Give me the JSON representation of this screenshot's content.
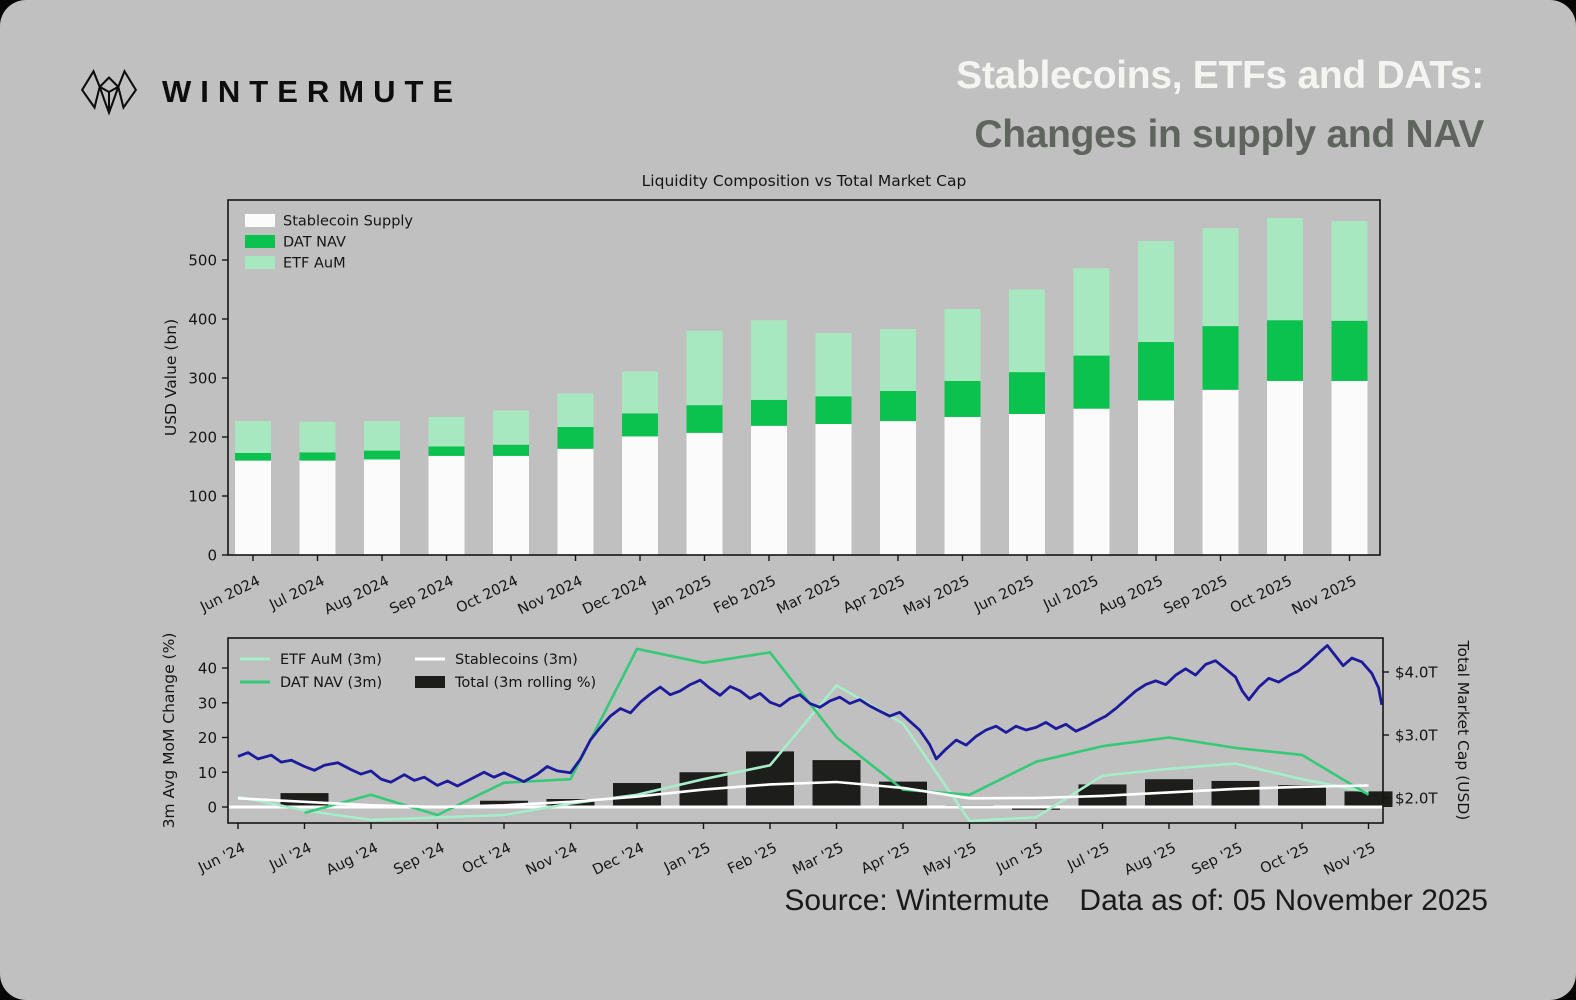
{
  "page": {
    "background": "#bfc0bf",
    "outer_background": "#060606"
  },
  "header": {
    "brand": "WINTERMUTE",
    "title_line1": "Stablecoins, ETFs and DATs:",
    "title_line2": "Changes in supply and NAV",
    "title_line1_color": "#f4f5f2",
    "title_line2_color": "#60645f"
  },
  "footer": {
    "source": "Source: Wintermute",
    "data_as_of": "Data as of: 05 November 2025"
  },
  "chart_data": [
    {
      "type": "bar",
      "title": "Liquidity Composition vs Total Market Cap",
      "ylabel": "USD Value (bn)",
      "yticks": [
        0,
        100,
        200,
        300,
        400,
        500
      ],
      "ylim": [
        0,
        601
      ],
      "grid": false,
      "legend_position": "upper left",
      "categories": [
        "Jun 2024",
        "Jul 2024",
        "Aug 2024",
        "Sep 2024",
        "Oct 2024",
        "Nov 2024",
        "Dec 2024",
        "Jan 2025",
        "Feb 2025",
        "Mar 2025",
        "Apr 2025",
        "May 2025",
        "Jun 2025",
        "Jul 2025",
        "Aug 2025",
        "Sep 2025",
        "Oct 2025",
        "Nov 2025"
      ],
      "series": [
        {
          "name": "Stablecoin Supply",
          "color": "#fafbfa",
          "values": [
            160,
            160,
            162,
            168,
            168,
            180,
            201,
            207,
            219,
            222,
            227,
            234,
            239,
            248,
            262,
            280,
            295,
            295
          ]
        },
        {
          "name": "DAT NAV",
          "color": "#0cc24f",
          "values": [
            13,
            14,
            15,
            16,
            19,
            37,
            39,
            47,
            44,
            47,
            51,
            61,
            71,
            90,
            99,
            108,
            103,
            102
          ]
        },
        {
          "name": "ETF AuM",
          "color": "#a8e8c0",
          "values": [
            54,
            52,
            50,
            50,
            58,
            57,
            71,
            126,
            135,
            107,
            105,
            122,
            140,
            148,
            171,
            166,
            173,
            169
          ]
        }
      ]
    },
    {
      "type": "line+bar",
      "ylabel_left": "3m Avg MoM Change (%)",
      "ylabel_right": "Total Market Cap (USD)",
      "yticks_left": [
        0,
        10,
        20,
        30,
        40
      ],
      "ylim_left": [
        -4.8,
        48.6
      ],
      "yticks_right": {
        "labels": [
          "$2.0T",
          "$3.0T",
          "$4.0T"
        ],
        "values": [
          2,
          3,
          4
        ]
      },
      "right_map": {
        "t": 2.0,
        "pct": 2.59,
        "pct_per_t": 18.13
      },
      "zero_line_color": "#ffffff",
      "categories": [
        "Jun '24",
        "Jul '24",
        "Aug '24",
        "Sep '24",
        "Oct '24",
        "Nov '24",
        "Dec '24",
        "Jan '25",
        "Feb '25",
        "Mar '25",
        "Apr '25",
        "May '25",
        "Jun '25",
        "Jul '25",
        "Aug '25",
        "Sep '25",
        "Oct '25",
        "Nov '25"
      ],
      "bars": {
        "name": "Total (3m rolling %)",
        "color": "#1d1d1b",
        "values": [
          0,
          4,
          0,
          0,
          1.8,
          2.3,
          6.9,
          10,
          16,
          13.5,
          7.3,
          0.5,
          -0.8,
          6.5,
          8,
          7.5,
          6.3,
          4.5
        ]
      },
      "lines": [
        {
          "name": "ETF AuM (3m)",
          "color": "#a6edc9",
          "values": [
            3,
            -1,
            -3.7,
            -3,
            -2.3,
            1,
            3.5,
            8,
            12,
            35,
            24,
            -4,
            -3,
            9,
            11,
            12.5,
            8,
            4.3
          ]
        },
        {
          "name": "DAT NAV (3m)",
          "color": "#36c977",
          "values": [
            null,
            -1.7,
            3.5,
            -2.3,
            7,
            8,
            45.5,
            41.5,
            44.5,
            20,
            5,
            3.5,
            13,
            17.5,
            20,
            17,
            15,
            3.5
          ]
        },
        {
          "name": "Stablecoins (3m)",
          "color": "#ffffff",
          "values": [
            2.5,
            1.5,
            0.5,
            0,
            0.5,
            1.5,
            3,
            5,
            6.5,
            7.2,
            5.5,
            2.5,
            2.6,
            3.2,
            4.2,
            5.2,
            5.8,
            6.2
          ]
        }
      ],
      "market_cap_line": {
        "name": "Total Market Cap",
        "color": "#1d1a9c",
        "points": [
          [
            0,
            2.66
          ],
          [
            0.15,
            2.72
          ],
          [
            0.3,
            2.62
          ],
          [
            0.5,
            2.68
          ],
          [
            0.65,
            2.57
          ],
          [
            0.8,
            2.6
          ],
          [
            1,
            2.5
          ],
          [
            1.15,
            2.44
          ],
          [
            1.3,
            2.52
          ],
          [
            1.5,
            2.56
          ],
          [
            1.7,
            2.45
          ],
          [
            1.85,
            2.38
          ],
          [
            2,
            2.43
          ],
          [
            2.15,
            2.3
          ],
          [
            2.3,
            2.25
          ],
          [
            2.5,
            2.37
          ],
          [
            2.65,
            2.28
          ],
          [
            2.8,
            2.33
          ],
          [
            3,
            2.2
          ],
          [
            3.15,
            2.27
          ],
          [
            3.3,
            2.19
          ],
          [
            3.5,
            2.3
          ],
          [
            3.7,
            2.41
          ],
          [
            3.85,
            2.33
          ],
          [
            4,
            2.4
          ],
          [
            4.15,
            2.33
          ],
          [
            4.3,
            2.26
          ],
          [
            4.5,
            2.38
          ],
          [
            4.65,
            2.5
          ],
          [
            4.8,
            2.43
          ],
          [
            5,
            2.4
          ],
          [
            5.15,
            2.62
          ],
          [
            5.3,
            2.92
          ],
          [
            5.45,
            3.12
          ],
          [
            5.6,
            3.3
          ],
          [
            5.75,
            3.42
          ],
          [
            5.9,
            3.35
          ],
          [
            6.05,
            3.52
          ],
          [
            6.2,
            3.65
          ],
          [
            6.35,
            3.76
          ],
          [
            6.5,
            3.64
          ],
          [
            6.65,
            3.7
          ],
          [
            6.8,
            3.8
          ],
          [
            6.95,
            3.87
          ],
          [
            7.1,
            3.74
          ],
          [
            7.25,
            3.63
          ],
          [
            7.4,
            3.77
          ],
          [
            7.55,
            3.7
          ],
          [
            7.7,
            3.58
          ],
          [
            7.85,
            3.66
          ],
          [
            8,
            3.52
          ],
          [
            8.15,
            3.46
          ],
          [
            8.3,
            3.58
          ],
          [
            8.45,
            3.64
          ],
          [
            8.6,
            3.5
          ],
          [
            8.75,
            3.44
          ],
          [
            8.9,
            3.54
          ],
          [
            9.05,
            3.6
          ],
          [
            9.2,
            3.5
          ],
          [
            9.35,
            3.56
          ],
          [
            9.5,
            3.46
          ],
          [
            9.65,
            3.38
          ],
          [
            9.8,
            3.3
          ],
          [
            9.95,
            3.36
          ],
          [
            10.1,
            3.22
          ],
          [
            10.25,
            3.08
          ],
          [
            10.4,
            2.85
          ],
          [
            10.5,
            2.62
          ],
          [
            10.65,
            2.78
          ],
          [
            10.8,
            2.92
          ],
          [
            10.95,
            2.84
          ],
          [
            11.1,
            2.98
          ],
          [
            11.25,
            3.08
          ],
          [
            11.4,
            3.14
          ],
          [
            11.55,
            3.04
          ],
          [
            11.7,
            3.14
          ],
          [
            11.85,
            3.08
          ],
          [
            12,
            3.12
          ],
          [
            12.15,
            3.2
          ],
          [
            12.3,
            3.1
          ],
          [
            12.45,
            3.17
          ],
          [
            12.6,
            3.06
          ],
          [
            12.75,
            3.13
          ],
          [
            12.9,
            3.22
          ],
          [
            13.05,
            3.3
          ],
          [
            13.2,
            3.42
          ],
          [
            13.35,
            3.56
          ],
          [
            13.5,
            3.7
          ],
          [
            13.65,
            3.8
          ],
          [
            13.8,
            3.86
          ],
          [
            13.95,
            3.8
          ],
          [
            14.1,
            3.95
          ],
          [
            14.25,
            4.05
          ],
          [
            14.4,
            3.95
          ],
          [
            14.55,
            4.12
          ],
          [
            14.7,
            4.18
          ],
          [
            14.85,
            4.05
          ],
          [
            15,
            3.92
          ],
          [
            15.1,
            3.7
          ],
          [
            15.2,
            3.56
          ],
          [
            15.35,
            3.76
          ],
          [
            15.5,
            3.9
          ],
          [
            15.65,
            3.84
          ],
          [
            15.8,
            3.94
          ],
          [
            15.95,
            4.02
          ],
          [
            16.1,
            4.15
          ],
          [
            16.25,
            4.3
          ],
          [
            16.38,
            4.42
          ],
          [
            16.5,
            4.26
          ],
          [
            16.62,
            4.1
          ],
          [
            16.75,
            4.22
          ],
          [
            16.9,
            4.16
          ],
          [
            17.05,
            3.98
          ],
          [
            17.15,
            3.75
          ],
          [
            17.2,
            3.48
          ]
        ]
      }
    }
  ]
}
